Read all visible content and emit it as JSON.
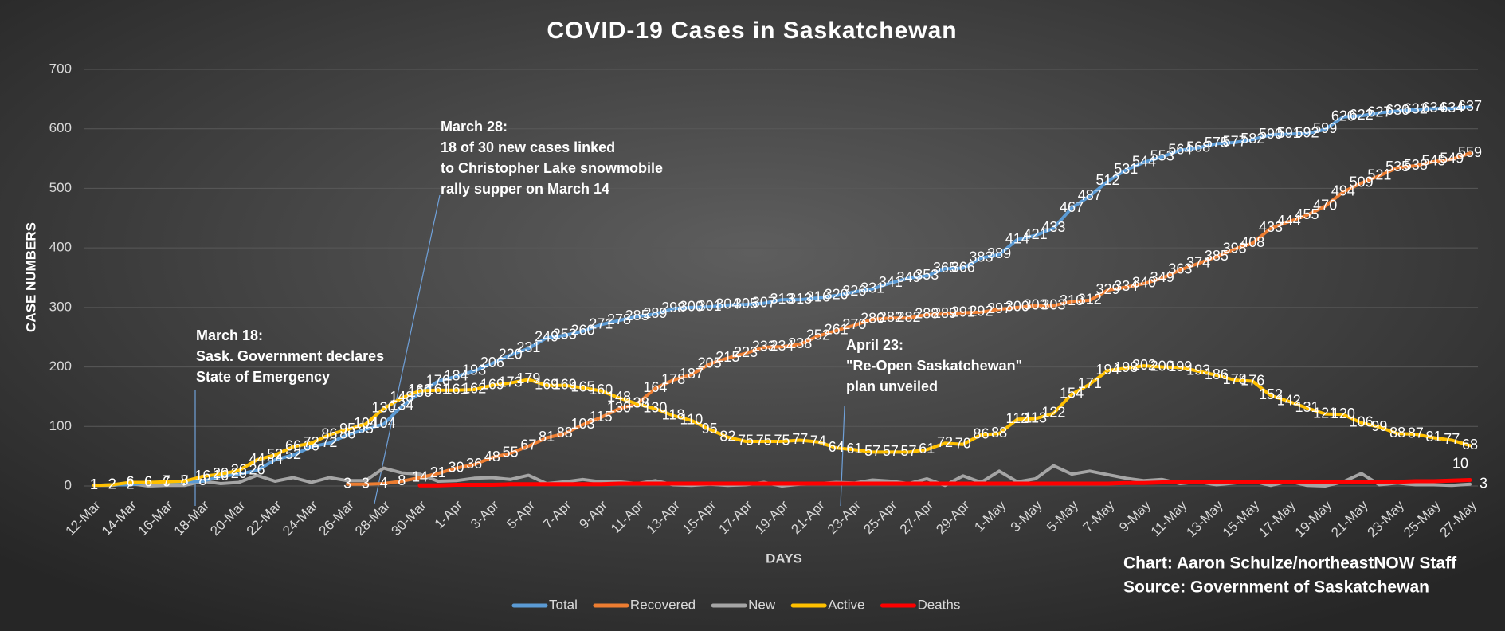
{
  "chart_data": {
    "type": "line",
    "title": "COVID-19 Cases in Saskatchewan",
    "y_label": "CASE NUMBERS",
    "x_label": "DAYS",
    "categories": [
      "12-Mar",
      null,
      "14-Mar",
      null,
      "16-Mar",
      null,
      "18-Mar",
      null,
      "20-Mar",
      null,
      "22-Mar",
      null,
      "24-Mar",
      null,
      "26-Mar",
      null,
      "28-Mar",
      null,
      "30-Mar",
      null,
      "1-Apr",
      null,
      "3-Apr",
      null,
      "5-Apr",
      null,
      "7-Apr",
      null,
      "9-Apr",
      null,
      "11-Apr",
      null,
      "13-Apr",
      null,
      "15-Apr",
      null,
      "17-Apr",
      null,
      "19-Apr",
      null,
      "21-Apr",
      null,
      "23-Apr",
      null,
      "25-Apr",
      null,
      "27-Apr",
      null,
      "29-Apr",
      null,
      "1-May",
      null,
      "3-May",
      null,
      "5-May",
      null,
      "7-May",
      null,
      "9-May",
      null,
      "11-May",
      null,
      "13-May",
      null,
      "15-May",
      null,
      "17-May",
      null,
      "19-May",
      null,
      "21-May",
      null,
      "23-May",
      null,
      "25-May",
      null,
      "27-May"
    ],
    "ylim": [
      0,
      700
    ],
    "yticks": [
      0,
      100,
      200,
      300,
      400,
      500,
      600,
      700
    ],
    "grid": true,
    "legend": "bottom",
    "series": [
      {
        "name": "Total",
        "color": "#5b9bd5",
        "data_labels": "all",
        "values": [
          1,
          2,
          2,
          6,
          6,
          7,
          8,
          16,
          20,
          26,
          44,
          52,
          66,
          72,
          86,
          95,
          104,
          134,
          156,
          176,
          184,
          193,
          206,
          220,
          231,
          249,
          253,
          260,
          271,
          278,
          285,
          289,
          298,
          300,
          301,
          304,
          305,
          307,
          313,
          313,
          316,
          320,
          326,
          331,
          341,
          349,
          353,
          365,
          366,
          383,
          389,
          414,
          421,
          433,
          467,
          487,
          512,
          531,
          544,
          553,
          564,
          568,
          575,
          577,
          582,
          590,
          591,
          592,
          599,
          620,
          622,
          627,
          630,
          632,
          634,
          634,
          637
        ]
      },
      {
        "name": "Recovered",
        "color": "#ed7d31",
        "data_labels": "all",
        "values": [
          null,
          null,
          null,
          null,
          null,
          null,
          null,
          null,
          null,
          null,
          null,
          null,
          null,
          null,
          3,
          3,
          4,
          8,
          14,
          21,
          30,
          36,
          48,
          55,
          67,
          81,
          88,
          103,
          115,
          130,
          138,
          164,
          178,
          187,
          205,
          215,
          223,
          233,
          234,
          238,
          252,
          261,
          270,
          280,
          282,
          282,
          288,
          289,
          291,
          292,
          297,
          300,
          303,
          303,
          310,
          312,
          329,
          334,
          340,
          349,
          363,
          374,
          385,
          398,
          408,
          433,
          444,
          455,
          470,
          494,
          509,
          521,
          535,
          538,
          545,
          549,
          559
        ]
      },
      {
        "name": "New",
        "color": "#a5a5a5",
        "data_labels": "last",
        "values": [
          1,
          1,
          4,
          0,
          1,
          1,
          8,
          4,
          6,
          18,
          8,
          14,
          6,
          14,
          9,
          9,
          30,
          22,
          20,
          8,
          9,
          13,
          14,
          11,
          18,
          4,
          7,
          11,
          7,
          7,
          4,
          9,
          2,
          1,
          3,
          1,
          2,
          6,
          0,
          3,
          4,
          6,
          5,
          10,
          8,
          4,
          12,
          1,
          17,
          6,
          25,
          7,
          12,
          34,
          20,
          25,
          19,
          13,
          9,
          11,
          4,
          7,
          2,
          5,
          8,
          1,
          8,
          1,
          0,
          7,
          21,
          2,
          5,
          2,
          2,
          1,
          3
        ]
      },
      {
        "name": "Active",
        "color": "#ffc000",
        "data_labels": "all",
        "values": [
          1,
          2,
          6,
          6,
          7,
          8,
          16,
          20,
          26,
          44,
          52,
          66,
          72,
          86,
          95,
          104,
          130,
          148,
          160,
          161,
          161,
          162,
          169,
          173,
          179,
          169,
          169,
          165,
          160,
          148,
          138,
          130,
          118,
          110,
          95,
          82,
          75,
          75,
          75,
          77,
          74,
          64,
          61,
          57,
          57,
          57,
          61,
          72,
          70,
          86,
          88,
          112,
          113,
          122,
          154,
          171,
          194,
          198,
          202,
          200,
          199,
          193,
          186,
          178,
          176,
          152,
          142,
          131,
          121,
          120,
          106,
          99,
          88,
          87,
          81,
          77,
          68
        ]
      },
      {
        "name": "Deaths",
        "color": "#ff0000",
        "data_labels": "last",
        "values": [
          null,
          null,
          null,
          null,
          null,
          null,
          null,
          null,
          null,
          null,
          null,
          null,
          null,
          null,
          null,
          null,
          null,
          null,
          1,
          1,
          2,
          2,
          2,
          3,
          3,
          3,
          3,
          3,
          3,
          4,
          4,
          4,
          4,
          4,
          4,
          4,
          4,
          4,
          4,
          4,
          4,
          4,
          4,
          4,
          4,
          4,
          4,
          4,
          4,
          4,
          4,
          4,
          4,
          4,
          4,
          4,
          4,
          5,
          5,
          6,
          6,
          6,
          6,
          6,
          6,
          6,
          6,
          6,
          6,
          6,
          6,
          7,
          7,
          8,
          8,
          9,
          10
        ]
      }
    ],
    "annotations": [
      {
        "lines": [
          "March 18:",
          "Sask. Government declares",
          "State of Emergency"
        ]
      },
      {
        "lines": [
          "March 28:",
          "18 of 30 new cases linked",
          "to Christopher Lake snowmobile",
          "rally supper on March 14"
        ]
      },
      {
        "lines": [
          "April 23:",
          "\"Re-Open Saskatchewan\"",
          "plan unveiled"
        ]
      }
    ],
    "credits": [
      "Chart: Aaron Schulze/northeastNOW Staff",
      "Source: Government of Saskatchewan"
    ]
  }
}
